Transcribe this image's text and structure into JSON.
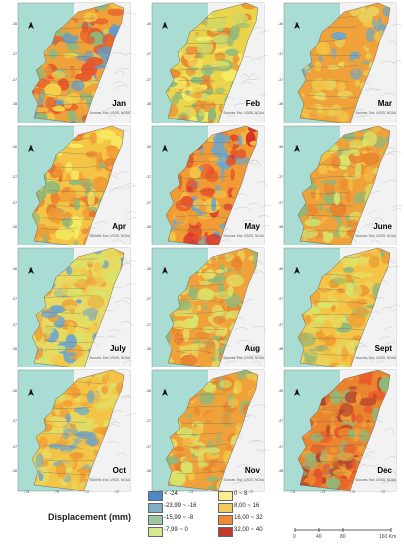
{
  "colors": {
    "sea": "#a9dcd3",
    "land": "#f2f2f2",
    "terrain_line": "#bdbdbd",
    "boundary": "#555555"
  },
  "panels": [
    {
      "month": "Jan",
      "palette": [
        "#f0a23a",
        "#e8552a",
        "#f3d24a",
        "#8fb87a",
        "#5f9ecb"
      ]
    },
    {
      "month": "Feb",
      "palette": [
        "#e9d44c",
        "#f6ec62",
        "#c9d86a",
        "#e9852f",
        "#8fb87a"
      ]
    },
    {
      "month": "Mar",
      "palette": [
        "#f0a23a",
        "#eda238",
        "#f3c445",
        "#e8d960",
        "#6ea6c9"
      ]
    },
    {
      "month": "Apr",
      "palette": [
        "#f3c445",
        "#f09b34",
        "#e9752b",
        "#f6ec62",
        "#8fb87a"
      ]
    },
    {
      "month": "May",
      "palette": [
        "#f09b34",
        "#e8552a",
        "#d9322a",
        "#f3c445",
        "#6ea6c9"
      ]
    },
    {
      "month": "June",
      "palette": [
        "#f0a23a",
        "#e9852f",
        "#f3c445",
        "#d9e36a",
        "#8fb87a"
      ]
    },
    {
      "month": "July",
      "palette": [
        "#e8d960",
        "#f0a23a",
        "#f3c445",
        "#d9e36a",
        "#6ea6c9"
      ]
    },
    {
      "month": "Aug",
      "palette": [
        "#f0a23a",
        "#e9852f",
        "#e8d960",
        "#d9e36a",
        "#8fb87a"
      ]
    },
    {
      "month": "Sept",
      "palette": [
        "#f3c445",
        "#e8d960",
        "#f09b34",
        "#d9e36a",
        "#8fb87a"
      ]
    },
    {
      "month": "Oct",
      "palette": [
        "#f3c445",
        "#e8d960",
        "#f09b34",
        "#d9e36a",
        "#6ea6c9"
      ]
    },
    {
      "month": "Nov",
      "palette": [
        "#f0a23a",
        "#e9852f",
        "#f3c445",
        "#d9e36a",
        "#8fb87a"
      ]
    },
    {
      "month": "Dec",
      "palette": [
        "#e9852f",
        "#e8552a",
        "#f0a23a",
        "#b5422a",
        "#8fb87a"
      ]
    }
  ],
  "source_text": "Sources: Esri, USGS, NOAA",
  "north_label": "N",
  "lon_ticks": [
    "-73",
    "-73",
    "-72",
    "-72"
  ],
  "lat_ticks": [
    "-36",
    "-37",
    "-37",
    "-38"
  ],
  "legend": {
    "title": "Displacement (mm)",
    "items": [
      {
        "label": "< -24",
        "color": "#4f86c6"
      },
      {
        "label": "-23,99 ~ -16",
        "color": "#7fb0c4"
      },
      {
        "label": "-15,99 ~ -8",
        "color": "#9cc7a0"
      },
      {
        "label": "-7,99 ~ 0",
        "color": "#d7eb8e"
      },
      {
        "label": "0 ~ 8",
        "color": "#f6ef8c"
      },
      {
        "label": "8,00 ~ 16",
        "color": "#f2cb5b"
      },
      {
        "label": "16,00 ~ 32",
        "color": "#ec8a3a"
      },
      {
        "label": "32,00 ~ 40",
        "color": "#c0392b"
      }
    ]
  },
  "scale_bar": {
    "labels": [
      "0",
      "40",
      "80",
      "160 Km"
    ]
  }
}
